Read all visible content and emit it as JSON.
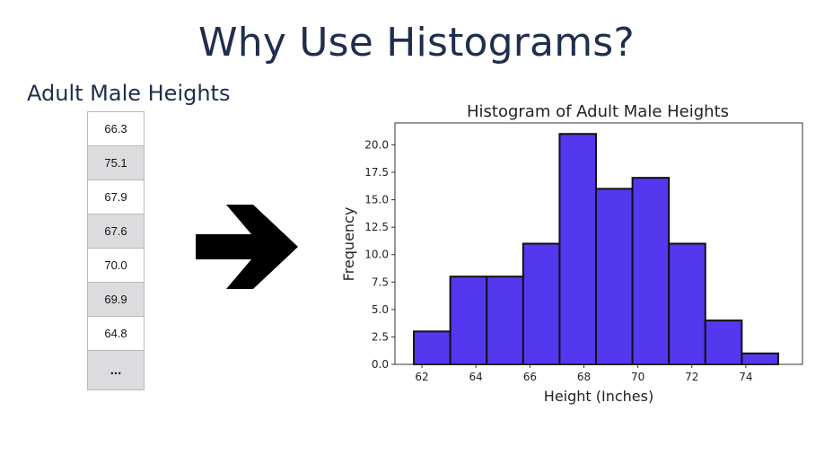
{
  "slide": {
    "title": "Why Use Histograms?"
  },
  "table": {
    "title": "Adult Male Heights",
    "values": [
      "66.3",
      "75.1",
      "67.9",
      "67.6",
      "70.0",
      "69.9",
      "64.8"
    ],
    "more": "..."
  },
  "arrow": {
    "icon": "right-arrow-icon"
  },
  "chart_data": {
    "type": "bar",
    "title": "Histogram of Adult Male Heights",
    "xlabel": "Height (Inches)",
    "ylabel": "Frequency",
    "bin_edges": [
      61.7,
      63.05,
      64.4,
      65.75,
      67.1,
      68.45,
      69.8,
      71.15,
      72.5,
      73.85,
      75.2
    ],
    "values": [
      3,
      8,
      8,
      11,
      21,
      16,
      17,
      11,
      4,
      1
    ],
    "xlim": [
      61,
      76.1
    ],
    "ylim": [
      0,
      22
    ],
    "xticks": [
      "62",
      "64",
      "66",
      "68",
      "70",
      "72",
      "74"
    ],
    "yticks": [
      "0.0",
      "2.5",
      "5.0",
      "7.5",
      "10.0",
      "12.5",
      "15.0",
      "17.5",
      "20.0"
    ],
    "bar_color": "#5338f0",
    "edge_color": "#111111",
    "grid": false
  }
}
